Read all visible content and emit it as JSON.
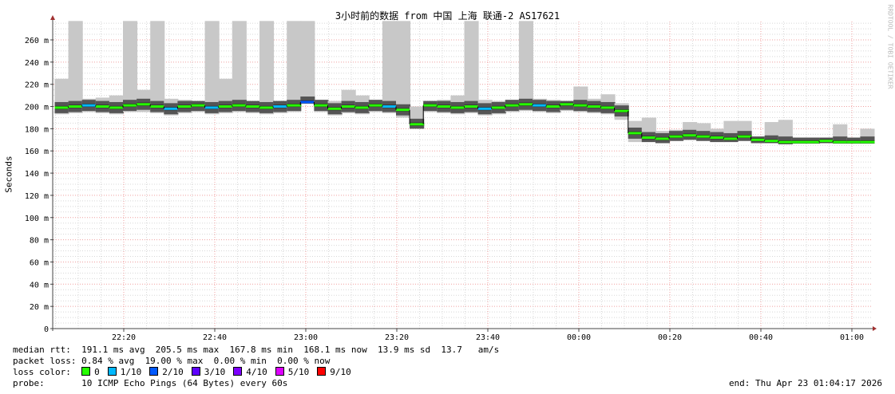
{
  "chart_data": {
    "type": "line",
    "title": "3小时前的数据 from 中国 上海 联通-2 AS17621",
    "ylabel": "Seconds",
    "watermark": "RRDTOOL / TOBI OETIKER",
    "ylim": [
      0,
      277
    ],
    "yticks": [
      0,
      20,
      40,
      60,
      80,
      100,
      120,
      140,
      160,
      180,
      200,
      220,
      240,
      260
    ],
    "ytick_labels": [
      "0",
      "20 m",
      "40 m",
      "60 m",
      "80 m",
      "100 m",
      "120 m",
      "140 m",
      "160 m",
      "180 m",
      "200 m",
      "220 m",
      "240 m",
      "260 m"
    ],
    "xticks": [
      "22:20",
      "22:40",
      "23:00",
      "23:20",
      "23:40",
      "00:00",
      "00:20",
      "00:40",
      "01:00"
    ],
    "x_start": "22:05",
    "x_step_minutes": 3,
    "grid": true,
    "median_ms": [
      199,
      200,
      201,
      200,
      199,
      201,
      202,
      200,
      198,
      200,
      201,
      199,
      200,
      201,
      200,
      199,
      200,
      201,
      204,
      201,
      198,
      200,
      199,
      201,
      200,
      197,
      184,
      201,
      200,
      199,
      200,
      198,
      199,
      201,
      202,
      201,
      200,
      202,
      201,
      200,
      199,
      196,
      176,
      172,
      171,
      173,
      174,
      173,
      172,
      171,
      173,
      170,
      169,
      168,
      168,
      168,
      169,
      168,
      168,
      168
    ],
    "loss_level": [
      0,
      0,
      1,
      0,
      0,
      0,
      0,
      0,
      1,
      0,
      0,
      1,
      0,
      0,
      0,
      0,
      1,
      0,
      2,
      0,
      0,
      0,
      0,
      0,
      1,
      0,
      0,
      0,
      0,
      0,
      0,
      1,
      0,
      0,
      0,
      1,
      0,
      0,
      0,
      0,
      0,
      0,
      0,
      0,
      0,
      0,
      0,
      0,
      0,
      0,
      0,
      0,
      0,
      0,
      0,
      0,
      0,
      0,
      0,
      0
    ],
    "smoke_min_ms": [
      193,
      194,
      195,
      194,
      193,
      195,
      195,
      194,
      192,
      194,
      195,
      193,
      194,
      195,
      194,
      193,
      194,
      195,
      203,
      195,
      192,
      194,
      193,
      195,
      194,
      190,
      180,
      195,
      194,
      193,
      194,
      192,
      193,
      195,
      196,
      195,
      194,
      196,
      195,
      194,
      193,
      188,
      168,
      168,
      167,
      169,
      170,
      169,
      168,
      168,
      169,
      167,
      167,
      166,
      167,
      167,
      167,
      167,
      167,
      167
    ],
    "smoke_max_ms": [
      225,
      277,
      207,
      208,
      210,
      277,
      215,
      277,
      207,
      206,
      205,
      277,
      225,
      277,
      205,
      277,
      205,
      277,
      277,
      206,
      205,
      215,
      210,
      206,
      277,
      277,
      200,
      205,
      206,
      210,
      277,
      206,
      205,
      206,
      277,
      207,
      206,
      205,
      218,
      207,
      211,
      203,
      187,
      190,
      178,
      179,
      186,
      185,
      180,
      187,
      187,
      173,
      186,
      188,
      172,
      172,
      172,
      184,
      172,
      180
    ],
    "loss_colors": [
      {
        "label": "0",
        "color": "#26ff00"
      },
      {
        "label": "1/10",
        "color": "#00b8ff"
      },
      {
        "label": "2/10",
        "color": "#0059ff"
      },
      {
        "label": "3/10",
        "color": "#5e00ff"
      },
      {
        "label": "4/10",
        "color": "#7e00ff"
      },
      {
        "label": "5/10",
        "color": "#dd00ff"
      },
      {
        "label": "9/10",
        "color": "#ff0000"
      }
    ]
  },
  "stats": {
    "median_rtt": "median rtt:  191.1 ms avg  205.5 ms max  167.8 ms min  168.1 ms now  13.9 ms sd  13.7   am/s",
    "packet_loss": "packet loss: 0.84 % avg  19.00 % max  0.00 % min  0.00 % now",
    "loss_color_label": "loss color:",
    "probe": "probe:       10 ICMP Echo Pings (64 Bytes) every 60s",
    "end": "end: Thu Apr 23 01:04:17 2026"
  }
}
